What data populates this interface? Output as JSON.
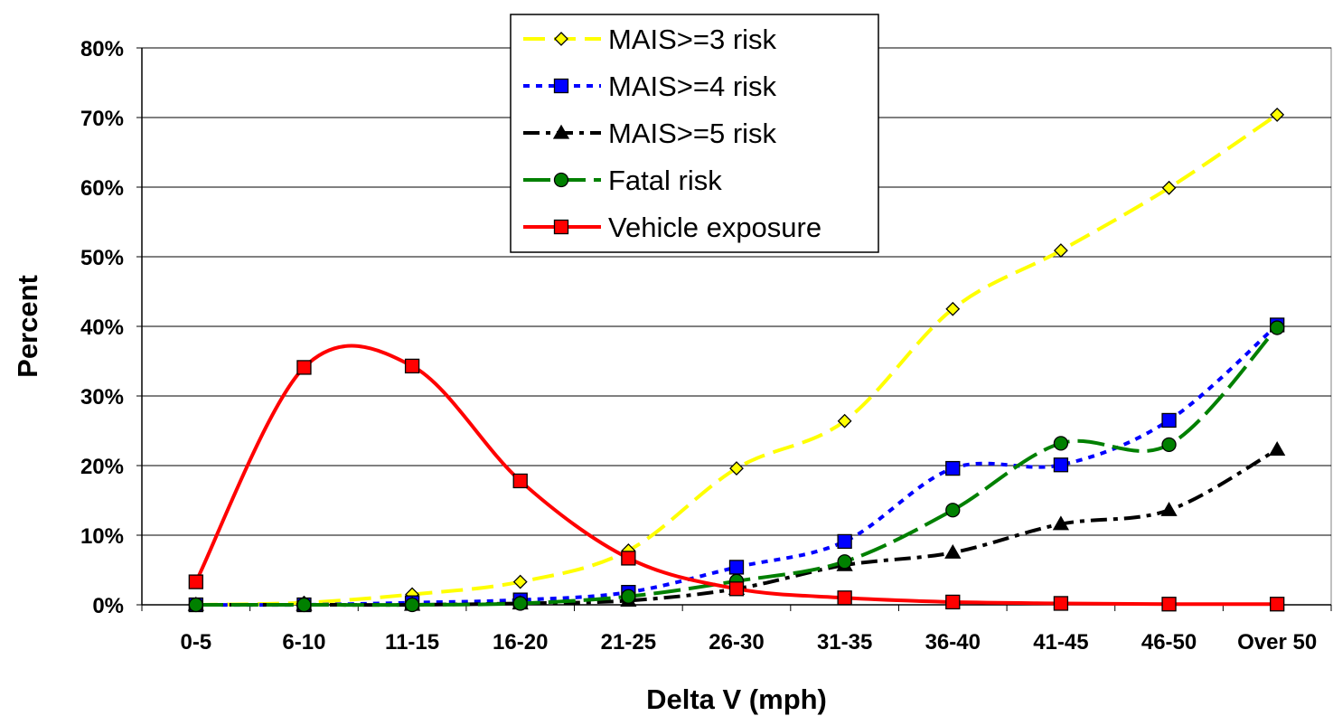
{
  "chart_data": {
    "type": "line",
    "title": "",
    "xlabel": "Delta V (mph)",
    "ylabel": "Percent",
    "categories": [
      "0-5",
      "6-10",
      "11-15",
      "16-20",
      "21-25",
      "26-30",
      "31-35",
      "36-40",
      "41-45",
      "46-50",
      "Over 50"
    ],
    "ylim": [
      0,
      80
    ],
    "yticks": [
      "0%",
      "10%",
      "20%",
      "30%",
      "40%",
      "50%",
      "60%",
      "70%",
      "80%"
    ],
    "grid": "horizontal",
    "legend_position": "top-center",
    "series": [
      {
        "name": "MAIS>=3 risk",
        "color": "#ffff00",
        "marker": "diamond",
        "marker_fill": "#ffff00",
        "dash": "dashed",
        "values": [
          0.0,
          0.3,
          1.5,
          3.3,
          7.8,
          19.6,
          26.4,
          42.5,
          50.9,
          59.9,
          70.4
        ]
      },
      {
        "name": "MAIS>=4 risk",
        "color": "#0000ff",
        "marker": "square",
        "marker_fill": "#0000ff",
        "dash": "dotted",
        "values": [
          0.0,
          0.0,
          0.3,
          0.7,
          1.8,
          5.4,
          9.1,
          19.6,
          20.1,
          26.5,
          40.2
        ]
      },
      {
        "name": "MAIS>=5 risk",
        "color": "#000000",
        "marker": "triangle",
        "marker_fill": "#000000",
        "dash": "dashdot",
        "values": [
          0.0,
          0.0,
          0.0,
          0.2,
          0.6,
          2.3,
          5.7,
          7.5,
          11.6,
          13.6,
          22.3
        ]
      },
      {
        "name": "Fatal risk",
        "color": "#008000",
        "marker": "circle",
        "marker_fill": "#008000",
        "dash": "longdash",
        "values": [
          0.0,
          0.0,
          0.0,
          0.2,
          1.2,
          3.4,
          6.2,
          13.6,
          23.2,
          23.0,
          39.8
        ]
      },
      {
        "name": "Vehicle exposure",
        "color": "#ff0000",
        "marker": "square",
        "marker_fill": "#ff0000",
        "dash": "solid",
        "values": [
          3.3,
          34.1,
          34.3,
          17.8,
          6.7,
          2.3,
          1.0,
          0.4,
          0.2,
          0.1,
          0.1
        ]
      }
    ]
  }
}
